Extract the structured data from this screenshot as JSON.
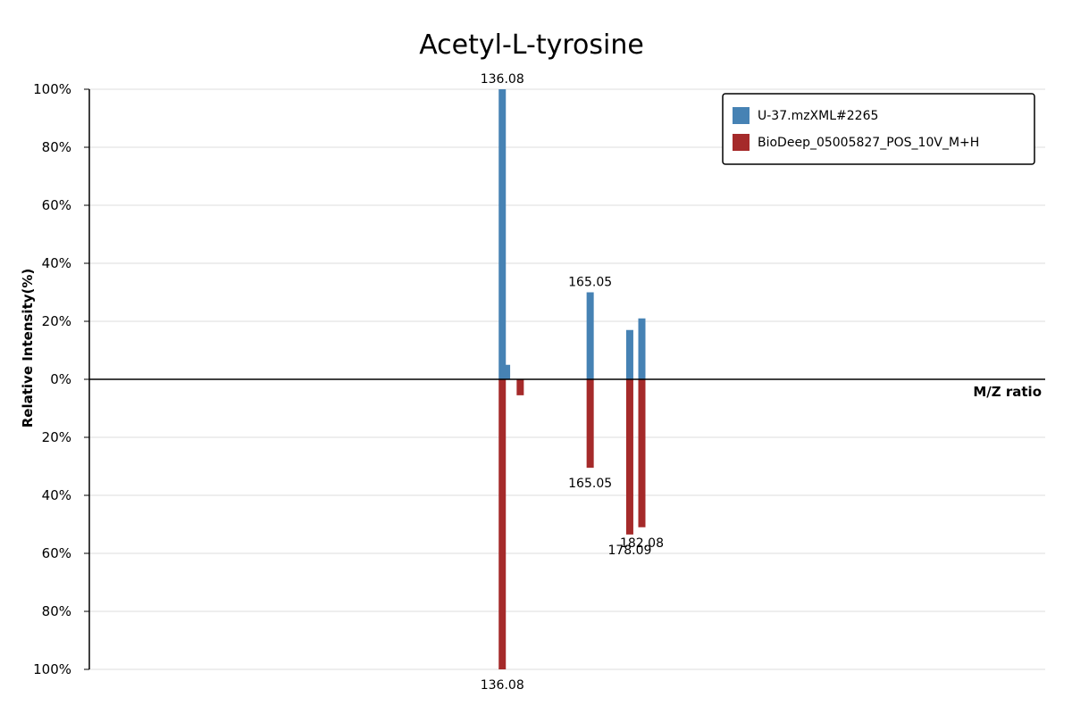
{
  "chart_data": {
    "type": "bar",
    "title": "Acetyl-L-tyrosine",
    "xlabel": "M/Z ratio",
    "ylabel": "Relative Intensity(%)",
    "ylim_top": [
      0,
      100
    ],
    "ylim_bottom": [
      0,
      100
    ],
    "xlim": [
      0,
      315
    ],
    "y_tick_labels_top": [
      "100%",
      "80%",
      "60%",
      "40%",
      "20%",
      "0%"
    ],
    "y_tick_labels_bottom": [
      "20%",
      "40%",
      "60%",
      "80%",
      "100%"
    ],
    "grid": true,
    "legend_position": "top-right",
    "series": [
      {
        "name": "U-37.mzXML#2265",
        "color": "#4682b4",
        "direction": "up",
        "peaks": [
          {
            "mz": 136.08,
            "intensity": 100,
            "label": "136.08"
          },
          {
            "mz": 137.5,
            "intensity": 5,
            "label": ""
          },
          {
            "mz": 165.05,
            "intensity": 30,
            "label": "165.05"
          },
          {
            "mz": 178.09,
            "intensity": 17,
            "label": ""
          },
          {
            "mz": 182.08,
            "intensity": 21,
            "label": ""
          }
        ]
      },
      {
        "name": "BioDeep_05005827_POS_10V_M+H",
        "color": "#a52a2a",
        "direction": "down",
        "peaks": [
          {
            "mz": 136.08,
            "intensity": 100,
            "label": "136.08"
          },
          {
            "mz": 142.0,
            "intensity": 5.5,
            "label": ""
          },
          {
            "mz": 165.05,
            "intensity": 30.5,
            "label": "165.05"
          },
          {
            "mz": 178.09,
            "intensity": 53.5,
            "label": "178.09"
          },
          {
            "mz": 182.08,
            "intensity": 51,
            "label": "182.08"
          }
        ]
      }
    ]
  }
}
